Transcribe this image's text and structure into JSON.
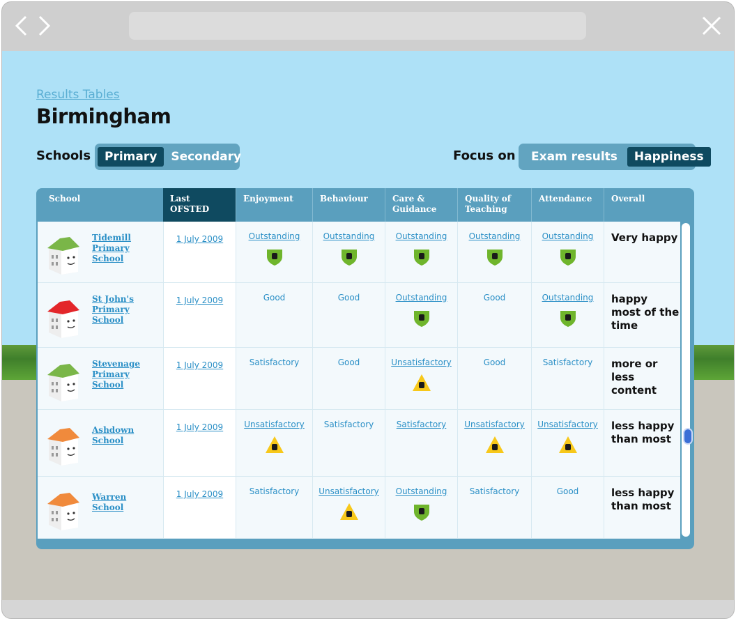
{
  "header": {
    "breadcrumb": "Results Tables",
    "title": "Birmingham"
  },
  "filters": {
    "schools_label": "Schools",
    "school_types": [
      "Primary",
      "Secondary"
    ],
    "selected_school_type": "Primary",
    "focus_label": "Focus on",
    "focus_options": [
      "Exam results",
      "Happiness"
    ],
    "selected_focus": "Happiness"
  },
  "table": {
    "columns": [
      "School",
      "Last OFSTED",
      "Enjoyment",
      "Behaviour",
      "Care & Guidance",
      "Quality of Teaching",
      "Attendance",
      "Overall"
    ],
    "sorted_column": "Last OFSTED",
    "rows": [
      {
        "school": "Tidemill Primary School",
        "house_color": "#7ab648",
        "ofsted": "1 July 2009",
        "enjoyment": "Outstanding",
        "behaviour": "Outstanding",
        "care": "Outstanding",
        "teaching": "Outstanding",
        "attendance": "Outstanding",
        "overall": "Very happy"
      },
      {
        "school": "St John's Primary School",
        "house_color": "#e3262a",
        "ofsted": "1 July 2009",
        "enjoyment": "Good",
        "behaviour": "Good",
        "care": "Outstanding",
        "teaching": "Good",
        "attendance": "Outstanding",
        "overall": "happy most of the time"
      },
      {
        "school": "Stevenage Primary School",
        "house_color": "#7ab648",
        "ofsted": "1 July 2009",
        "enjoyment": "Satisfactory",
        "behaviour": "Good",
        "care": "Unsatisfactory",
        "teaching": "Good",
        "attendance": "Satisfactory",
        "overall": "more or less content"
      },
      {
        "school": "Ashdown School",
        "house_color": "#f08a3c",
        "ofsted": "1 July 2009",
        "enjoyment": "Unsatisfactory",
        "behaviour": "Satisfactory",
        "care": "Satisfactory",
        "teaching": "Unsatisfactory",
        "attendance": "Unsatisfactory",
        "overall": "less happy than most"
      },
      {
        "school": "Warren School",
        "house_color": "#f08a3c",
        "ofsted": "1 July 2009",
        "enjoyment": "Satisfactory",
        "behaviour": "Unsatisfactory",
        "care": "Outstanding",
        "teaching": "Satisfactory",
        "attendance": "Good",
        "overall": "less happy than most"
      }
    ]
  },
  "colors": {
    "sky": "#aee1f7",
    "panel": "#5a9fbe",
    "selected_tab": "#0f4a60",
    "link": "#2a8fc6",
    "outstanding_badge": "#6fb52c",
    "unsatisfactory_badge": "#f7c81a"
  }
}
